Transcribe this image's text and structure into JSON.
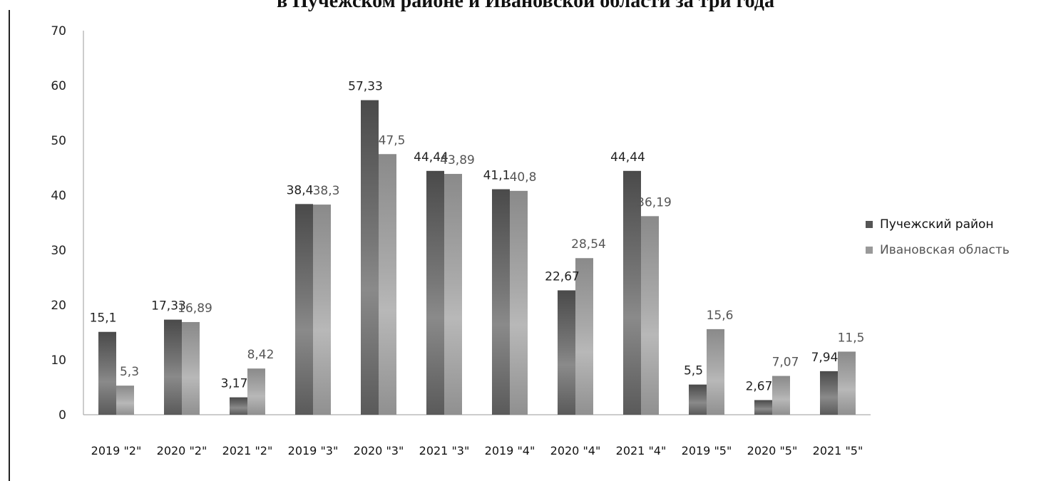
{
  "chart_data": {
    "type": "bar",
    "title": "в Пучежском районе и Ивановской области за три года",
    "xlabel": "",
    "ylabel": "",
    "ylim": [
      0,
      70
    ],
    "yticks": [
      0,
      10,
      20,
      30,
      40,
      50,
      60,
      70
    ],
    "grid": false,
    "legend_position": "right",
    "categories": [
      "2019 \"2\"",
      "2020 \"2\"",
      "2021 \"2\"",
      "2019 \"3\"",
      "2020 \"3\"",
      "2021 \"3\"",
      "2019 \"4\"",
      "2020 \"4\"",
      "2021 \"4\"",
      "2019 \"5\"",
      "2020 \"5\"",
      "2021 \"5\""
    ],
    "series": [
      {
        "name": "Пучежский район",
        "values": [
          15.1,
          17.33,
          3.17,
          38.4,
          57.33,
          44.44,
          41.1,
          22.67,
          44.44,
          5.5,
          2.67,
          7.94
        ],
        "labels": [
          "15,1",
          "17,33",
          "3,17",
          "38,4",
          "57,33",
          "44,44",
          "41,1",
          "22,67",
          "44,44",
          "5,5",
          "2,67",
          "7,94"
        ],
        "color": "#555555"
      },
      {
        "name": "Ивановская область",
        "values": [
          5.3,
          16.89,
          8.42,
          38.3,
          47.5,
          43.89,
          40.8,
          28.54,
          36.19,
          15.6,
          7.07,
          11.5
        ],
        "labels": [
          "5,3",
          "16,89",
          "8,42",
          "38,3",
          "47,5",
          "43,89",
          "40,8",
          "28,54",
          "36,19",
          "15,6",
          "7,07",
          "11,5"
        ],
        "color": "#999999"
      }
    ]
  }
}
